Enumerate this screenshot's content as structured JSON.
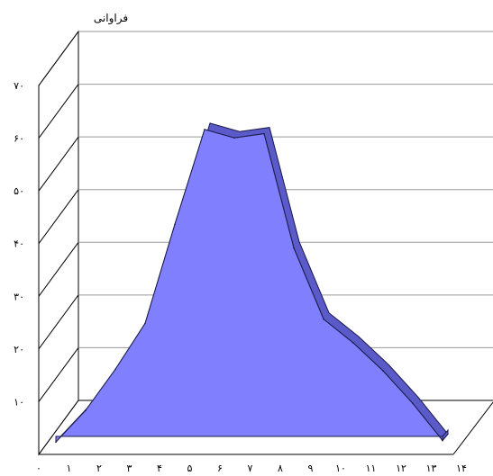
{
  "chart_data": {
    "type": "area",
    "title": "",
    "ylabel": "فراوانی",
    "xlabel": "",
    "x_tick_labels": [
      "۰",
      "۱",
      "۲",
      "۳",
      "۴",
      "۵",
      "۶",
      "۷",
      "۸",
      "۹",
      "۱۰",
      "۱۱",
      "۱۲",
      "۱۳",
      "۱۴"
    ],
    "y_tick_labels": [
      "۱۰",
      "۲۰",
      "۳۰",
      "۴۰",
      "۵۰",
      "۶۰",
      "۷۰"
    ],
    "y_tick_values": [
      10,
      20,
      30,
      40,
      50,
      60,
      70
    ],
    "ylim": [
      0,
      70
    ],
    "three_d": true,
    "gridlines": true,
    "legend": "none",
    "series": [
      {
        "values": [
          1.5,
          7.5,
          15.3,
          24.0,
          42.8,
          60.8,
          59.2,
          60.0,
          38.3,
          24.8,
          20.3,
          15.0,
          8.8,
          1.8
        ]
      }
    ],
    "colors": {
      "fill": "#8080ff",
      "side": "#5a5ac8",
      "edge": "#1a1a4a",
      "grid": "#9a9a9a"
    }
  }
}
